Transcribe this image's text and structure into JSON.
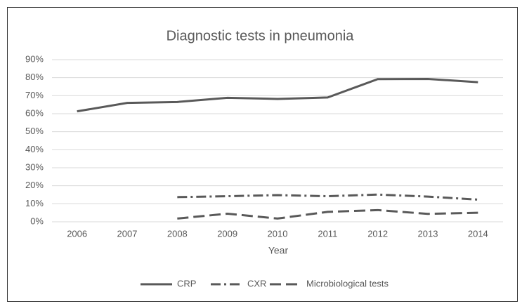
{
  "chart_data": {
    "type": "line",
    "title": "Diagnostic tests in pneumonia",
    "x_label": "Year",
    "categories": [
      "2006",
      "2007",
      "2008",
      "2009",
      "2010",
      "2011",
      "2012",
      "2013",
      "2014"
    ],
    "series": [
      {
        "name": "CRP",
        "color": "#595959",
        "dash": "solid",
        "values": [
          61.3,
          66.0,
          66.5,
          68.8,
          68.2,
          69.0,
          79.2,
          79.3,
          77.5
        ]
      },
      {
        "name": "CXR",
        "color": "#595959",
        "dash": "dashdot",
        "values": [
          null,
          null,
          13.7,
          14.2,
          14.8,
          14.2,
          15.1,
          14.0,
          12.3
        ]
      },
      {
        "name": "Microbiological tests",
        "color": "#595959",
        "dash": "dash",
        "values": [
          null,
          null,
          1.8,
          4.5,
          1.8,
          5.5,
          6.5,
          4.4,
          5.0
        ]
      }
    ],
    "ylim": [
      0,
      90
    ],
    "yticks": [
      {
        "value": 0,
        "label": "0%"
      },
      {
        "value": 10,
        "label": "10%"
      },
      {
        "value": 20,
        "label": "20%"
      },
      {
        "value": 30,
        "label": "30%"
      },
      {
        "value": 40,
        "label": "40%"
      },
      {
        "value": 50,
        "label": "50%"
      },
      {
        "value": 60,
        "label": "60%"
      },
      {
        "value": 70,
        "label": "70%"
      },
      {
        "value": 80,
        "label": "80%"
      },
      {
        "value": 90,
        "label": "90%"
      }
    ],
    "grid": true,
    "legend": "bottom"
  }
}
